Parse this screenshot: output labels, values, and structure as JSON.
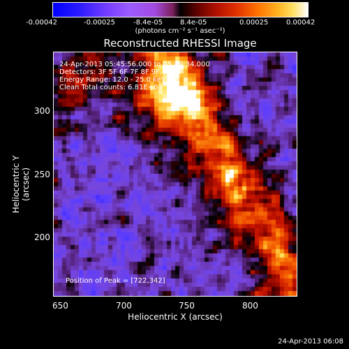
{
  "colorbar": {
    "ticks": [
      "-0.00042",
      "-0.00025",
      "-8.4e-05",
      "8.4e-05",
      "0.00025",
      "0.00042"
    ],
    "units": "(photons cm⁻² s⁻¹ asec⁻²)"
  },
  "title": "Reconstructed RHESSI Image",
  "info": {
    "time": "24-Apr-2013 05:45:56.000 to 05:49:34.000",
    "detectors": "Detectors: 3F 5F 6F 7F 8F 9F, Att 0",
    "energy": "Energy Range: 12.0 - 25.0 keV",
    "clean": "Clean     Total counts: 6.81E+03",
    "peak": "Position of Peak = [722,342]"
  },
  "axes": {
    "xlabel": "Heliocentric X (arcsec)",
    "ylabel": "Heliocentric Y (arcsec)",
    "xticks": [
      "650",
      "700",
      "750",
      "800"
    ],
    "yticks": [
      "300",
      "250",
      "200"
    ]
  },
  "timestamp": "24-Apr-2013 06:08"
}
